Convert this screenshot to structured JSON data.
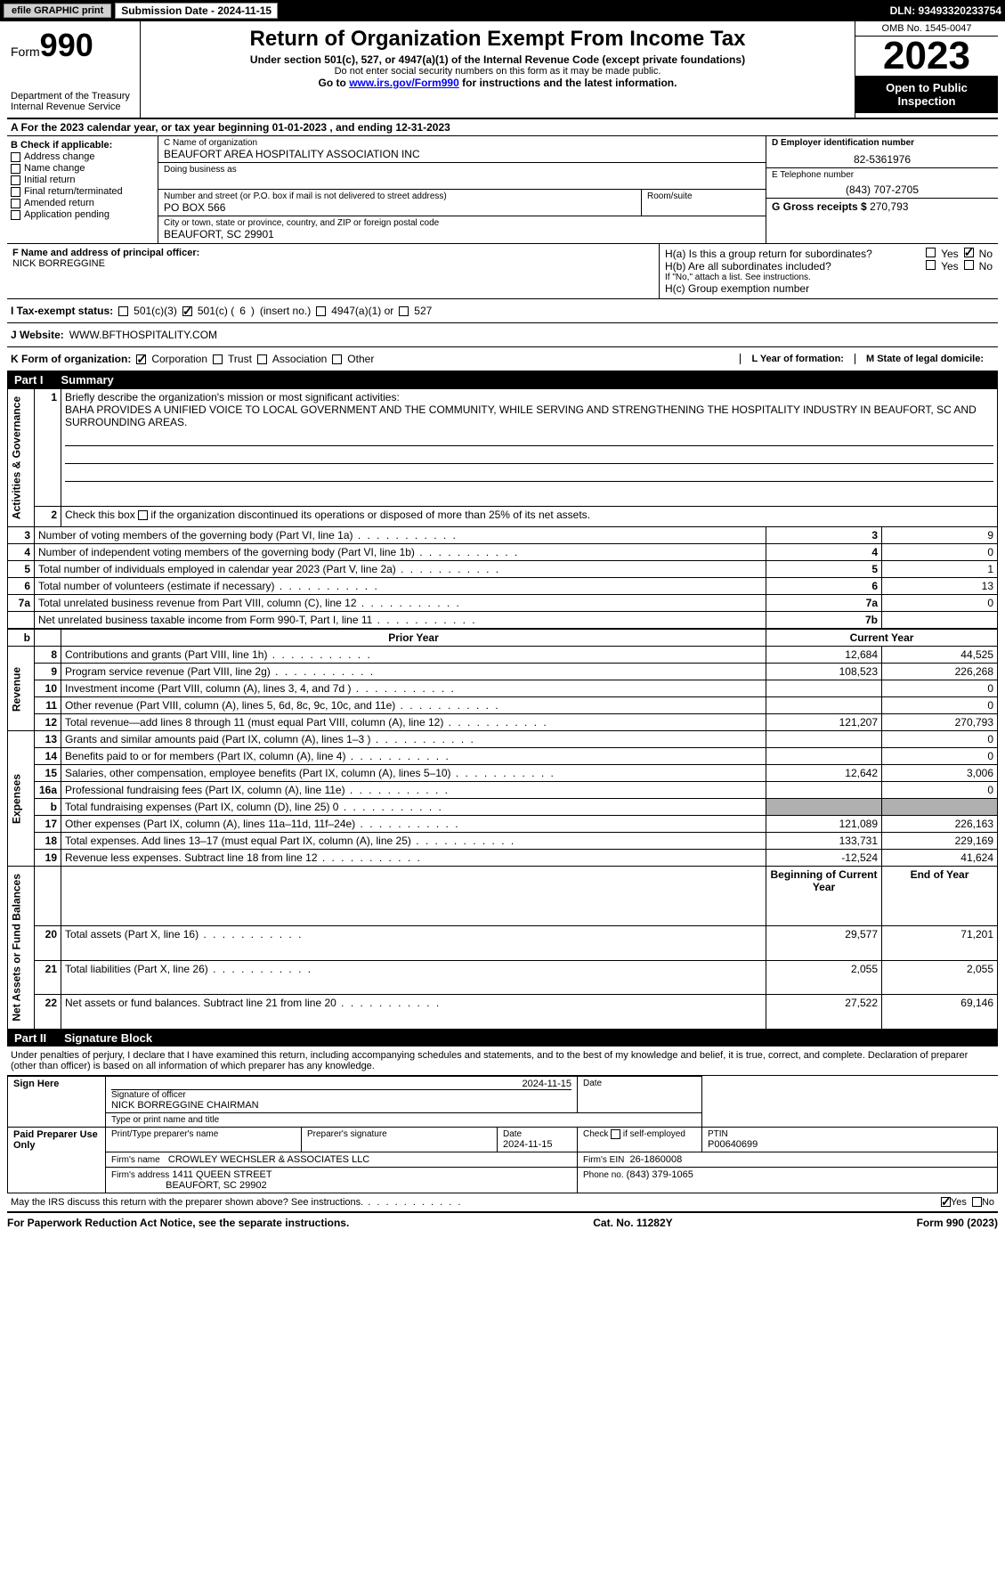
{
  "colors": {
    "black": "#000000",
    "white": "#ffffff",
    "gray_cell": "#b0b0b0",
    "btn_gray": "#d0d0d0",
    "link": "#0000ff"
  },
  "topbar": {
    "efile": "efile GRAPHIC print",
    "submission_label": "Submission Date - 2024-11-15",
    "dln": "DLN: 93493320233754"
  },
  "header": {
    "form_word": "Form",
    "form_number": "990",
    "dept": "Department of the Treasury\nInternal Revenue Service",
    "title": "Return of Organization Exempt From Income Tax",
    "line1": "Under section 501(c), 527, or 4947(a)(1) of the Internal Revenue Code (except private foundations)",
    "line2": "Do not enter social security numbers on this form as it may be made public.",
    "line3_pre": "Go to ",
    "line3_link": "www.irs.gov/Form990",
    "line3_post": " for instructions and the latest information.",
    "omb": "OMB No. 1545-0047",
    "year": "2023",
    "inspection": "Open to Public Inspection"
  },
  "period": {
    "text_a": "A For the 2023 calendar year, or tax year beginning ",
    "begin": "01-01-2023",
    "text_mid": " , and ending ",
    "end": "12-31-2023"
  },
  "box_b": {
    "label": "B Check if applicable:",
    "items": [
      "Address change",
      "Name change",
      "Initial return",
      "Final return/terminated",
      "Amended return",
      "Application pending"
    ]
  },
  "box_c": {
    "name_label": "C Name of organization",
    "name": "BEAUFORT AREA HOSPITALITY ASSOCIATION INC",
    "dba_label": "Doing business as",
    "dba": "",
    "street_label": "Number and street (or P.O. box if mail is not delivered to street address)",
    "street": "PO BOX 566",
    "room_label": "Room/suite",
    "city_label": "City or town, state or province, country, and ZIP or foreign postal code",
    "city": "BEAUFORT, SC  29901"
  },
  "box_d": {
    "ein_label": "D Employer identification number",
    "ein": "82-5361976",
    "phone_label": "E Telephone number",
    "phone": "(843) 707-2705",
    "gross_label": "G Gross receipts $",
    "gross": "270,793"
  },
  "officer": {
    "label": "F  Name and address of principal officer:",
    "name": "NICK BORREGGINE"
  },
  "h": {
    "a_label": "H(a)  Is this a group return for subordinates?",
    "a_yes": false,
    "a_no": true,
    "b_label": "H(b)  Are all subordinates included?",
    "b_yes": false,
    "b_no": false,
    "b_note": "If \"No,\" attach a list. See instructions.",
    "c_label": "H(c)  Group exemption number"
  },
  "status": {
    "label": "I   Tax-exempt status:",
    "c3": false,
    "c_other": true,
    "c_no": "6",
    "c_insert": "(insert no.)",
    "a4947": false,
    "s527": false
  },
  "website": {
    "label": "J   Website:",
    "value": "WWW.BFTHOSPITALITY.COM"
  },
  "form_org": {
    "label": "K Form of organization:",
    "corp": true,
    "trust": false,
    "assoc": false,
    "other": false,
    "l_label": "L Year of formation:",
    "l_val": "",
    "m_label": "M State of legal domicile:",
    "m_val": ""
  },
  "part1": {
    "title": "Part I",
    "subtitle": "Summary",
    "sections": {
      "gov": "Activities & Governance",
      "rev": "Revenue",
      "exp": "Expenses",
      "net": "Net Assets or Fund Balances"
    },
    "line1_label": "Briefly describe the organization's mission or most significant activities:",
    "mission": "BAHA PROVIDES A UNIFIED VOICE TO LOCAL GOVERNMENT AND THE COMMUNITY, WHILE SERVING AND STRENGTHENING THE HOSPITALITY INDUSTRY IN BEAUFORT, SC AND SURROUNDING AREAS.",
    "line2": "Check this box       if the organization discontinued its operations or disposed of more than 25% of its net assets.",
    "rows_gov": [
      {
        "n": "3",
        "t": "Number of voting members of the governing body (Part VI, line 1a)",
        "k": "3",
        "v": "9"
      },
      {
        "n": "4",
        "t": "Number of independent voting members of the governing body (Part VI, line 1b)",
        "k": "4",
        "v": "0"
      },
      {
        "n": "5",
        "t": "Total number of individuals employed in calendar year 2023 (Part V, line 2a)",
        "k": "5",
        "v": "1"
      },
      {
        "n": "6",
        "t": "Total number of volunteers (estimate if necessary)",
        "k": "6",
        "v": "13"
      },
      {
        "n": "7a",
        "t": "Total unrelated business revenue from Part VIII, column (C), line 12",
        "k": "7a",
        "v": "0"
      },
      {
        "n": "",
        "t": "Net unrelated business taxable income from Form 990-T, Part I, line 11",
        "k": "7b",
        "v": ""
      }
    ],
    "prior_hdr": "Prior Year",
    "current_hdr": "Current Year",
    "rows_rev": [
      {
        "n": "8",
        "t": "Contributions and grants (Part VIII, line 1h)",
        "p": "12,684",
        "c": "44,525"
      },
      {
        "n": "9",
        "t": "Program service revenue (Part VIII, line 2g)",
        "p": "108,523",
        "c": "226,268"
      },
      {
        "n": "10",
        "t": "Investment income (Part VIII, column (A), lines 3, 4, and 7d )",
        "p": "",
        "c": "0"
      },
      {
        "n": "11",
        "t": "Other revenue (Part VIII, column (A), lines 5, 6d, 8c, 9c, 10c, and 11e)",
        "p": "",
        "c": "0"
      },
      {
        "n": "12",
        "t": "Total revenue—add lines 8 through 11 (must equal Part VIII, column (A), line 12)",
        "p": "121,207",
        "c": "270,793"
      }
    ],
    "rows_exp": [
      {
        "n": "13",
        "t": "Grants and similar amounts paid (Part IX, column (A), lines 1–3 )",
        "p": "",
        "c": "0"
      },
      {
        "n": "14",
        "t": "Benefits paid to or for members (Part IX, column (A), line 4)",
        "p": "",
        "c": "0"
      },
      {
        "n": "15",
        "t": "Salaries, other compensation, employee benefits (Part IX, column (A), lines 5–10)",
        "p": "12,642",
        "c": "3,006"
      },
      {
        "n": "16a",
        "t": "Professional fundraising fees (Part IX, column (A), line 11e)",
        "p": "",
        "c": "0"
      },
      {
        "n": "b",
        "t": "Total fundraising expenses (Part IX, column (D), line 25) 0",
        "p": "GRAY",
        "c": "GRAY"
      },
      {
        "n": "17",
        "t": "Other expenses (Part IX, column (A), lines 11a–11d, 11f–24e)",
        "p": "121,089",
        "c": "226,163"
      },
      {
        "n": "18",
        "t": "Total expenses. Add lines 13–17 (must equal Part IX, column (A), line 25)",
        "p": "133,731",
        "c": "229,169"
      },
      {
        "n": "19",
        "t": "Revenue less expenses. Subtract line 18 from line 12",
        "p": "-12,524",
        "c": "41,624"
      }
    ],
    "net_prior_hdr": "Beginning of Current Year",
    "net_curr_hdr": "End of Year",
    "rows_net": [
      {
        "n": "20",
        "t": "Total assets (Part X, line 16)",
        "p": "29,577",
        "c": "71,201"
      },
      {
        "n": "21",
        "t": "Total liabilities (Part X, line 26)",
        "p": "2,055",
        "c": "2,055"
      },
      {
        "n": "22",
        "t": "Net assets or fund balances. Subtract line 21 from line 20",
        "p": "27,522",
        "c": "69,146"
      }
    ]
  },
  "part2": {
    "title": "Part II",
    "subtitle": "Signature Block",
    "intro": "Under penalties of perjury, I declare that I have examined this return, including accompanying schedules and statements, and to the best of my knowledge and belief, it is true, correct, and complete. Declaration of preparer (other than officer) is based on all information of which preparer has any knowledge.",
    "sign_here": "Sign Here",
    "sig_officer_label": "Signature of officer",
    "sig_officer": "NICK BORREGGINE  CHAIRMAN",
    "sig_type_label": "Type or print name and title",
    "sig_date": "2024-11-15",
    "paid": "Paid Preparer Use Only",
    "prep_name_label": "Print/Type preparer's name",
    "prep_sig_label": "Preparer's signature",
    "prep_date_label": "Date",
    "prep_date": "2024-11-15",
    "check_self": "Check       if self-employed",
    "ptin_label": "PTIN",
    "ptin": "P00640699",
    "firm_name_label": "Firm's name",
    "firm_name": "CROWLEY WECHSLER & ASSOCIATES LLC",
    "firm_ein_label": "Firm's EIN",
    "firm_ein": "26-1860008",
    "firm_addr_label": "Firm's address",
    "firm_addr1": "1411 QUEEN STREET",
    "firm_addr2": "BEAUFORT, SC  29902",
    "firm_phone_label": "Phone no.",
    "firm_phone": "(843) 379-1065",
    "discuss": "May the IRS discuss this return with the preparer shown above? See instructions.",
    "discuss_yes": true,
    "discuss_no": false
  },
  "footer": {
    "left": "For Paperwork Reduction Act Notice, see the separate instructions.",
    "mid": "Cat. No. 11282Y",
    "right": "Form 990 (2023)"
  }
}
